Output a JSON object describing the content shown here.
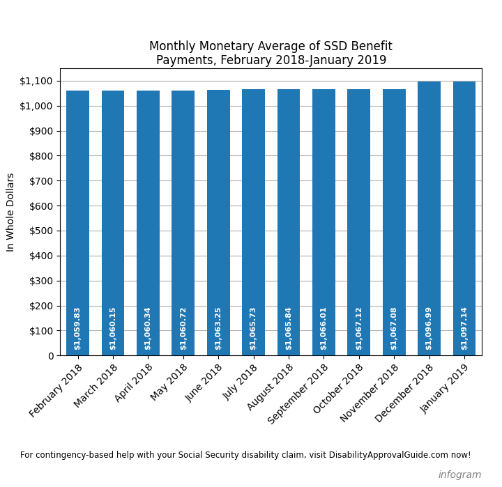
{
  "chart_data": {
    "type": "bar",
    "title": "Monthly Monetary Average of SSD Benefit\nPayments, February 2018-January 2019",
    "y_label": "In Whole Dollars",
    "categories": [
      "February 2018",
      "March 2018",
      "April 2018",
      "May 2018",
      "June 2018",
      "July 2018",
      "August 2018",
      "September 2018",
      "October 2018",
      "November 2018",
      "December 2018",
      "January 2019"
    ],
    "values": [
      1059.83,
      1060.15,
      1060.34,
      1060.72,
      1063.25,
      1065.73,
      1065.84,
      1066.01,
      1067.12,
      1067.08,
      1096.99,
      1097.14
    ],
    "value_labels": [
      "$1,059.83",
      "$1,060.15",
      "$1,060.34",
      "$1,060.72",
      "$1,063.25",
      "$1,065.73",
      "$1,065.84",
      "$1,066.01",
      "$1,067.12",
      "$1,067.08",
      "$1,096.99",
      "$1,097.14"
    ],
    "data_labels": true,
    "ylim": [
      0,
      1150
    ],
    "yticks": [
      0,
      {
        "value": 100,
        "label": "$100"
      },
      {
        "value": 200,
        "label": "$200"
      },
      {
        "value": 300,
        "label": "$300"
      },
      {
        "value": 400,
        "label": "$400"
      },
      {
        "value": 500,
        "label": "$500"
      },
      {
        "value": 600,
        "label": "$600"
      },
      {
        "value": 700,
        "label": "$700"
      },
      {
        "value": 800,
        "label": "$800"
      },
      {
        "value": 900,
        "label": "$900"
      },
      {
        "value": 1000,
        "label": "$1,000"
      },
      {
        "value": 1100,
        "label": "$1,100"
      }
    ],
    "grid": true,
    "annotations": [
      "For contingency-based help with your Social Security disability claim, visit DisabilityApprovalGuide.com now!",
      "infogram"
    ]
  }
}
